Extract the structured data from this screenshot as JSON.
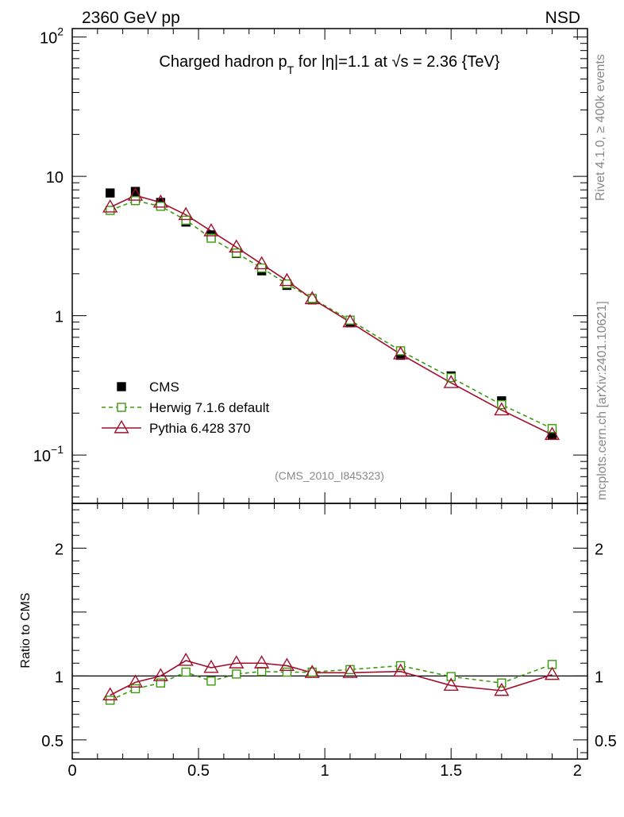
{
  "header": {
    "left_label": "2360 GeV pp",
    "right_label": "NSD"
  },
  "side": {
    "rivet_label": "Rivet 4.1.0, ≥ 400k events",
    "mcplots_label": "mcplots.cern.ch [arXiv:2401.10621]"
  },
  "chart_data": [
    {
      "type": "scatter",
      "panel": "main",
      "title_parts": {
        "pre": "Charged hadron p",
        "sub": "T",
        "mid": " for |η|=1.1 at ",
        "sqrt": "√s",
        "post": " = 2.36 {TeV}"
      },
      "analysis_id": "(CMS_2010_I845323)",
      "yscale": "log",
      "ylim": [
        0.045,
        115
      ],
      "xlim": [
        0,
        2.04
      ],
      "ytick_labels": [
        {
          "value": 100,
          "base": "10",
          "exp": "2"
        },
        {
          "value": 10,
          "base": "10",
          "exp": ""
        },
        {
          "value": 1,
          "base": "1",
          "exp": ""
        },
        {
          "value": 0.1,
          "base": "10",
          "exp": "−1"
        }
      ],
      "x": [
        0.15,
        0.25,
        0.35,
        0.45,
        0.55,
        0.65,
        0.75,
        0.85,
        0.95,
        1.1,
        1.3,
        1.5,
        1.7,
        1.9
      ],
      "series": [
        {
          "name": "CMS",
          "color": "#000000",
          "marker": "filled-square",
          "values": [
            7.6,
            7.8,
            6.5,
            4.7,
            3.8,
            2.8,
            2.1,
            1.65,
            1.3,
            0.89,
            0.52,
            0.37,
            0.245,
            0.14
          ]
        },
        {
          "name": "Herwig 7.1.6 default",
          "color": "#3b9a0c",
          "marker": "open-square",
          "line": "dashed",
          "values": [
            5.7,
            6.7,
            6.1,
            4.85,
            3.6,
            2.82,
            2.2,
            1.69,
            1.33,
            0.93,
            0.56,
            0.36,
            0.23,
            0.155
          ]
        },
        {
          "name": "Pythia 6.428 370",
          "color": "#a0102c",
          "marker": "open-triangle",
          "line": "solid",
          "values": [
            6.0,
            7.3,
            6.5,
            5.3,
            4.05,
            3.1,
            2.35,
            1.78,
            1.32,
            0.9,
            0.53,
            0.33,
            0.21,
            0.14
          ]
        }
      ]
    },
    {
      "type": "line",
      "panel": "ratio",
      "ylabel": "Ratio to CMS",
      "ylim": [
        0.35,
        2.35
      ],
      "xlim": [
        0,
        2.04
      ],
      "ytick_labels": [
        "2",
        "1",
        "0.5"
      ],
      "ytick_values": [
        2,
        1,
        0.5
      ],
      "xtick_labels": [
        "0",
        "0.5",
        "1",
        "1.5",
        "2"
      ],
      "xtick_values": [
        0,
        0.5,
        1,
        1.5,
        2
      ],
      "reference_value": 1,
      "x": [
        0.15,
        0.25,
        0.35,
        0.45,
        0.55,
        0.65,
        0.75,
        0.85,
        0.95,
        1.1,
        1.3,
        1.5,
        1.7,
        1.9
      ],
      "series": [
        {
          "name": "Herwig 7.1.6 default",
          "values": [
            0.81,
            0.9,
            0.945,
            1.03,
            0.96,
            1.015,
            1.035,
            1.03,
            1.03,
            1.05,
            1.08,
            0.995,
            0.945,
            1.09
          ]
        },
        {
          "name": "Pythia 6.428 370",
          "values": [
            0.85,
            0.95,
            1.0,
            1.12,
            1.065,
            1.1,
            1.1,
            1.08,
            1.025,
            1.025,
            1.035,
            0.925,
            0.885,
            1.01
          ]
        }
      ]
    }
  ]
}
